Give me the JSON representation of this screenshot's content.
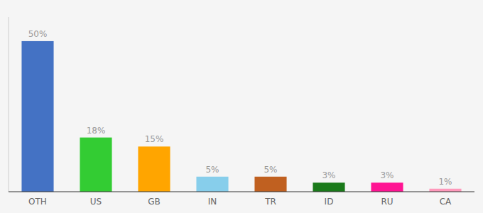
{
  "chart_data": {
    "type": "bar",
    "categories": [
      "OTH",
      "US",
      "GB",
      "IN",
      "TR",
      "ID",
      "RU",
      "CA"
    ],
    "values": [
      50,
      18,
      15,
      5,
      5,
      3,
      3,
      1
    ],
    "value_labels": [
      "50%",
      "18%",
      "15%",
      "5%",
      "5%",
      "3%",
      "3%",
      "1%"
    ],
    "colors": [
      "#4472C4",
      "#33CC33",
      "#FFA500",
      "#87CEEB",
      "#C06020",
      "#1A7A1A",
      "#FF1493",
      "#FF99BB"
    ],
    "ylim": [
      0,
      58
    ],
    "data_labels": true,
    "tick_labels": "x"
  }
}
